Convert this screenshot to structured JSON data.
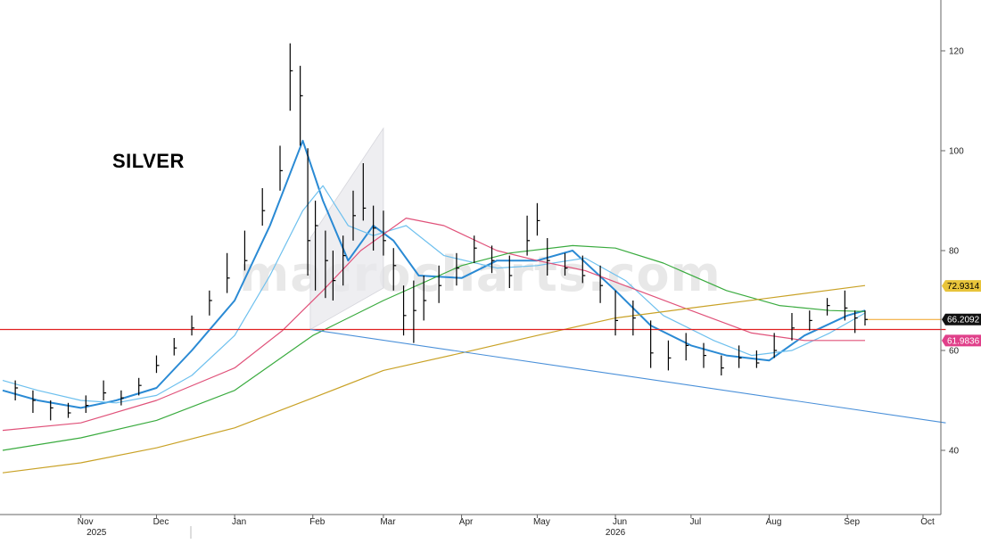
{
  "chart_data": {
    "type": "line",
    "title": "SILVER",
    "watermark": "macrocharts.com",
    "ylim": [
      27,
      133
    ],
    "y_ticks": [
      40,
      60,
      80,
      100,
      120
    ],
    "x_months": [
      {
        "label": "Nov",
        "date": "2025-11-01"
      },
      {
        "label": "Dec",
        "date": "2025-12-01"
      },
      {
        "label": "Jan",
        "date": "2026-01-01"
      },
      {
        "label": "Feb",
        "date": "2026-02-01"
      },
      {
        "label": "Mar",
        "date": "2026-03-01"
      },
      {
        "label": "Apr",
        "date": "2026-04-01"
      },
      {
        "label": "May",
        "date": "2026-05-01"
      },
      {
        "label": "Jun",
        "date": "2026-06-01"
      },
      {
        "label": "Jul",
        "date": "2026-07-01"
      },
      {
        "label": "Aug",
        "date": "2026-08-01"
      },
      {
        "label": "Sep",
        "date": "2026-09-01"
      },
      {
        "label": "Oct",
        "date": "2026-10-01"
      }
    ],
    "x_years": [
      {
        "label": "2025",
        "date": "2025-11-15"
      },
      {
        "label": "2026",
        "date": "2026-06-01"
      }
    ],
    "price_bars": [
      [
        "2025-10-06",
        52.5,
        54,
        50
      ],
      [
        "2025-10-13",
        50,
        52,
        47.5
      ],
      [
        "2025-10-20",
        48.5,
        50,
        46
      ],
      [
        "2025-10-27",
        47.5,
        49.5,
        46.5
      ],
      [
        "2025-11-03",
        49,
        51,
        47.5
      ],
      [
        "2025-11-10",
        51.5,
        54,
        50
      ],
      [
        "2025-11-17",
        50.5,
        52,
        49
      ],
      [
        "2025-11-24",
        53,
        54.5,
        51
      ],
      [
        "2025-12-01",
        57,
        59,
        55.5
      ],
      [
        "2025-12-08",
        60.5,
        62.5,
        59
      ],
      [
        "2025-12-15",
        64.5,
        67,
        63
      ],
      [
        "2025-12-22",
        70,
        72,
        67
      ],
      [
        "2025-12-29",
        74.5,
        79.5,
        71.5
      ],
      [
        "2026-01-05",
        78,
        84,
        76
      ],
      [
        "2026-01-12",
        88,
        92.5,
        85
      ],
      [
        "2026-01-19",
        96,
        101,
        92
      ],
      [
        "2026-01-23",
        116,
        121.5,
        108
      ],
      [
        "2026-01-27",
        111,
        117,
        101
      ],
      [
        "2026-01-30",
        82,
        100.5,
        75
      ],
      [
        "2026-02-02",
        85,
        90,
        72
      ],
      [
        "2026-02-06",
        78,
        84,
        70.5
      ],
      [
        "2026-02-09",
        74,
        80,
        70
      ],
      [
        "2026-02-13",
        79,
        83,
        73
      ],
      [
        "2026-02-17",
        87,
        92,
        82
      ],
      [
        "2026-02-21",
        88.5,
        97.5,
        86
      ],
      [
        "2026-02-25",
        84.5,
        89,
        80
      ],
      [
        "2026-03-01",
        82,
        88,
        79
      ],
      [
        "2026-03-05",
        77,
        80.5,
        72
      ],
      [
        "2026-03-09",
        67,
        73,
        63
      ],
      [
        "2026-03-13",
        68,
        74,
        61.5
      ],
      [
        "2026-03-17",
        70,
        75,
        66
      ],
      [
        "2026-03-23",
        73,
        77,
        69.5
      ],
      [
        "2026-03-30",
        76.5,
        79.5,
        73
      ],
      [
        "2026-04-06",
        80.5,
        83,
        77.5
      ],
      [
        "2026-04-13",
        78,
        81,
        75.5
      ],
      [
        "2026-04-20",
        75,
        79,
        72.5
      ],
      [
        "2026-04-27",
        82,
        87,
        79
      ],
      [
        "2026-05-01",
        86,
        89.5,
        83
      ],
      [
        "2026-05-05",
        78,
        82.5,
        75
      ],
      [
        "2026-05-12",
        76.5,
        79.5,
        75
      ],
      [
        "2026-05-19",
        75,
        79,
        73.5
      ],
      [
        "2026-05-26",
        73,
        77,
        69.5
      ],
      [
        "2026-06-01",
        66,
        72,
        63
      ],
      [
        "2026-06-08",
        66.5,
        70,
        63
      ],
      [
        "2026-06-15",
        59.5,
        66,
        56.5
      ],
      [
        "2026-06-22",
        58.5,
        62,
        56
      ],
      [
        "2026-06-29",
        61,
        63.5,
        58
      ],
      [
        "2026-07-06",
        59,
        61.5,
        56.5
      ],
      [
        "2026-07-13",
        56.5,
        59,
        55
      ],
      [
        "2026-07-20",
        58.5,
        61,
        56.5
      ],
      [
        "2026-07-27",
        57.5,
        60,
        56.5
      ],
      [
        "2026-08-03",
        60,
        63.5,
        58.5
      ],
      [
        "2026-08-10",
        64.5,
        67.5,
        62
      ],
      [
        "2026-08-17",
        66,
        68,
        64
      ],
      [
        "2026-08-24",
        69,
        70.5,
        67
      ],
      [
        "2026-08-31",
        68.5,
        72,
        66
      ],
      [
        "2026-09-04",
        66.5,
        68,
        63.5
      ],
      [
        "2026-09-08",
        66.2,
        68,
        65
      ]
    ],
    "series": [
      {
        "color": "#2a8ad4",
        "values": [
          [
            "2025-10-01",
            52
          ],
          [
            "2025-10-15",
            50
          ],
          [
            "2025-11-01",
            48.5
          ],
          [
            "2025-11-15",
            50
          ],
          [
            "2025-12-01",
            52.5
          ],
          [
            "2025-12-15",
            60
          ],
          [
            "2026-01-01",
            70
          ],
          [
            "2026-01-15",
            85
          ],
          [
            "2026-01-28",
            102
          ],
          [
            "2026-02-05",
            90
          ],
          [
            "2026-02-15",
            78
          ],
          [
            "2026-02-25",
            85
          ],
          [
            "2026-03-05",
            82
          ],
          [
            "2026-03-15",
            75
          ],
          [
            "2026-04-01",
            74.5
          ],
          [
            "2026-04-15",
            78
          ],
          [
            "2026-05-01",
            78
          ],
          [
            "2026-05-15",
            80
          ],
          [
            "2026-06-01",
            72
          ],
          [
            "2026-06-15",
            65
          ],
          [
            "2026-07-01",
            61
          ],
          [
            "2026-07-15",
            59
          ],
          [
            "2026-08-01",
            58
          ],
          [
            "2026-08-15",
            63
          ],
          [
            "2026-09-01",
            67
          ],
          [
            "2026-09-08",
            68
          ]
        ]
      },
      {
        "color": "#6ec0ee",
        "values": [
          [
            "2025-10-01",
            54
          ],
          [
            "2025-10-15",
            52
          ],
          [
            "2025-11-01",
            50
          ],
          [
            "2025-11-15",
            49.5
          ],
          [
            "2025-12-01",
            51
          ],
          [
            "2025-12-15",
            55
          ],
          [
            "2026-01-01",
            63
          ],
          [
            "2026-01-15",
            75
          ],
          [
            "2026-01-28",
            88
          ],
          [
            "2026-02-05",
            93
          ],
          [
            "2026-02-15",
            85
          ],
          [
            "2026-02-25",
            83
          ],
          [
            "2026-03-10",
            85
          ],
          [
            "2026-03-25",
            79
          ],
          [
            "2026-04-15",
            76.5
          ],
          [
            "2026-05-01",
            77
          ],
          [
            "2026-05-20",
            78.5
          ],
          [
            "2026-06-05",
            74
          ],
          [
            "2026-06-20",
            67
          ],
          [
            "2026-07-10",
            62
          ],
          [
            "2026-07-25",
            59
          ],
          [
            "2026-08-10",
            60
          ],
          [
            "2026-08-25",
            63.5
          ],
          [
            "2026-09-08",
            67.5
          ]
        ]
      },
      {
        "color": "#e0527a",
        "values": [
          [
            "2025-10-01",
            44
          ],
          [
            "2025-11-01",
            45.5
          ],
          [
            "2025-12-01",
            50
          ],
          [
            "2026-01-01",
            56.5
          ],
          [
            "2026-01-20",
            64
          ],
          [
            "2026-02-05",
            72
          ],
          [
            "2026-02-20",
            80
          ],
          [
            "2026-03-10",
            86.5
          ],
          [
            "2026-03-25",
            85
          ],
          [
            "2026-04-15",
            80
          ],
          [
            "2026-05-01",
            78
          ],
          [
            "2026-05-20",
            76
          ],
          [
            "2026-06-10",
            72
          ],
          [
            "2026-07-01",
            68
          ],
          [
            "2026-07-25",
            63.5
          ],
          [
            "2026-08-15",
            62
          ],
          [
            "2026-09-08",
            62
          ]
        ]
      },
      {
        "color": "#3aab3f",
        "values": [
          [
            "2025-10-01",
            40
          ],
          [
            "2025-11-01",
            42.5
          ],
          [
            "2025-12-01",
            46
          ],
          [
            "2026-01-01",
            52
          ],
          [
            "2026-02-01",
            63
          ],
          [
            "2026-03-01",
            70
          ],
          [
            "2026-04-01",
            77
          ],
          [
            "2026-04-20",
            79.5
          ],
          [
            "2026-05-15",
            81
          ],
          [
            "2026-06-01",
            80.5
          ],
          [
            "2026-06-20",
            77.5
          ],
          [
            "2026-07-15",
            72
          ],
          [
            "2026-08-05",
            69
          ],
          [
            "2026-08-25",
            68
          ],
          [
            "2026-09-08",
            67.8
          ]
        ]
      },
      {
        "color": "#c9a227",
        "values": [
          [
            "2025-10-01",
            35.5
          ],
          [
            "2025-11-01",
            37.5
          ],
          [
            "2025-12-01",
            40.5
          ],
          [
            "2026-01-01",
            44.5
          ],
          [
            "2026-02-01",
            50.5
          ],
          [
            "2026-03-01",
            56
          ],
          [
            "2026-04-01",
            59.5
          ],
          [
            "2026-05-01",
            63
          ],
          [
            "2026-06-01",
            66.5
          ],
          [
            "2026-07-01",
            68.5
          ],
          [
            "2026-08-01",
            70.5
          ],
          [
            "2026-09-08",
            73
          ]
        ]
      }
    ],
    "annotations": {
      "horizontal_line": {
        "value": 64.2,
        "color": "#e02020",
        "from": "2025-09-20",
        "to": "2026-10-10"
      },
      "trendline": {
        "color": "#4a90d9",
        "from": [
          "2026-01-31",
          64.2
        ],
        "to": [
          "2026-10-10",
          45.5
        ]
      },
      "channel": {
        "fill": "#e8e8ec",
        "points": [
          [
            "2026-01-31",
            64.2
          ],
          [
            "2026-03-01",
            72.5
          ],
          [
            "2026-03-01",
            104.5
          ],
          [
            "2026-01-31",
            82.5
          ]
        ]
      },
      "extension_line": {
        "color": "#f0a020",
        "value": 66.2,
        "from": "2026-09-08",
        "to": "2026-10-10"
      }
    },
    "badges": [
      {
        "label": "72.9314",
        "value": 72.9314,
        "bg": "#e8c43a",
        "fg": "#000000"
      },
      {
        "label": "66.2092",
        "value": 66.2092,
        "bg": "#111111",
        "fg": "#ffffff"
      },
      {
        "label": "61.9836",
        "value": 61.9836,
        "bg": "#e0408a",
        "fg": "#ffffff"
      }
    ]
  }
}
